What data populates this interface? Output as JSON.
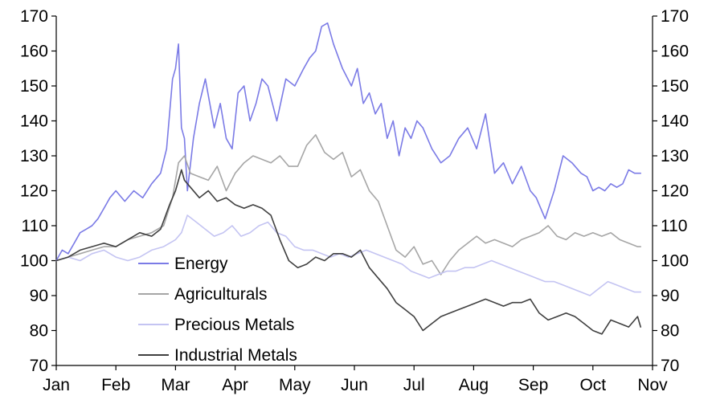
{
  "chart_data": {
    "type": "line",
    "title": "",
    "xlabel": "",
    "ylabel": "",
    "ylim": [
      70,
      170
    ],
    "y_ticks": [
      70,
      80,
      90,
      100,
      110,
      120,
      130,
      140,
      150,
      160,
      170
    ],
    "x_tick_labels": [
      "Jan",
      "Feb",
      "Mar",
      "Apr",
      "May",
      "Jun",
      "Jul",
      "Aug",
      "Sep",
      "Oct",
      "Nov"
    ],
    "x_unit": "month index (0 = start of Jan, 10 = start of Nov)",
    "xlim": [
      0,
      10
    ],
    "grid": false,
    "right_axis": true,
    "legend_position": "bottom-left",
    "series": [
      {
        "name": "Energy",
        "color": "#7b7be6",
        "x": [
          0,
          0.1,
          0.2,
          0.3,
          0.4,
          0.5,
          0.6,
          0.7,
          0.8,
          0.9,
          1.0,
          1.15,
          1.3,
          1.45,
          1.6,
          1.75,
          1.85,
          1.95,
          2.0,
          2.05,
          2.1,
          2.15,
          2.2,
          2.3,
          2.4,
          2.5,
          2.65,
          2.75,
          2.85,
          2.95,
          3.05,
          3.15,
          3.25,
          3.35,
          3.45,
          3.55,
          3.7,
          3.85,
          4.0,
          4.15,
          4.25,
          4.35,
          4.45,
          4.55,
          4.65,
          4.8,
          4.95,
          5.05,
          5.15,
          5.25,
          5.35,
          5.45,
          5.55,
          5.65,
          5.75,
          5.85,
          5.95,
          6.05,
          6.15,
          6.3,
          6.45,
          6.6,
          6.75,
          6.9,
          7.05,
          7.2,
          7.35,
          7.5,
          7.65,
          7.8,
          7.95,
          8.05,
          8.2,
          8.35,
          8.5,
          8.65,
          8.8,
          8.9,
          9.0,
          9.1,
          9.2,
          9.3,
          9.4,
          9.5,
          9.6,
          9.7,
          9.8
        ],
        "values": [
          100,
          103,
          102,
          105,
          108,
          109,
          110,
          112,
          115,
          118,
          120,
          117,
          120,
          118,
          122,
          125,
          132,
          152,
          155,
          162,
          138,
          135,
          120,
          135,
          145,
          152,
          138,
          145,
          135,
          132,
          148,
          150,
          140,
          145,
          152,
          150,
          140,
          152,
          150,
          155,
          158,
          160,
          167,
          168,
          162,
          155,
          150,
          155,
          145,
          148,
          142,
          145,
          135,
          140,
          130,
          138,
          135,
          140,
          138,
          132,
          128,
          130,
          135,
          138,
          132,
          142,
          125,
          128,
          122,
          127,
          120,
          118,
          112,
          120,
          130,
          128,
          125,
          124,
          120,
          121,
          120,
          122,
          121,
          122,
          126,
          125,
          125
        ]
      },
      {
        "name": "Agriculturals",
        "color": "#a6a6a6",
        "x": [
          0,
          0.2,
          0.4,
          0.6,
          0.8,
          1.0,
          1.2,
          1.4,
          1.6,
          1.8,
          1.95,
          2.05,
          2.15,
          2.25,
          2.4,
          2.55,
          2.7,
          2.85,
          3.0,
          3.15,
          3.3,
          3.45,
          3.6,
          3.75,
          3.9,
          4.05,
          4.2,
          4.35,
          4.5,
          4.65,
          4.8,
          4.95,
          5.1,
          5.25,
          5.4,
          5.55,
          5.7,
          5.85,
          6.0,
          6.15,
          6.3,
          6.45,
          6.6,
          6.75,
          6.9,
          7.05,
          7.2,
          7.35,
          7.5,
          7.65,
          7.8,
          7.95,
          8.1,
          8.25,
          8.4,
          8.55,
          8.7,
          8.85,
          9.0,
          9.15,
          9.3,
          9.45,
          9.6,
          9.75,
          9.8
        ],
        "values": [
          100,
          101,
          102,
          103,
          104,
          104,
          106,
          107,
          108,
          110,
          118,
          128,
          130,
          125,
          124,
          123,
          127,
          120,
          125,
          128,
          130,
          129,
          128,
          130,
          127,
          127,
          133,
          136,
          131,
          129,
          131,
          124,
          126,
          120,
          117,
          110,
          103,
          101,
          104,
          99,
          100,
          96,
          100,
          103,
          105,
          107,
          105,
          106,
          105,
          104,
          106,
          107,
          108,
          110,
          107,
          106,
          108,
          107,
          108,
          107,
          108,
          106,
          105,
          104,
          104
        ]
      },
      {
        "name": "Precious Metals",
        "color": "#c4c4f2",
        "x": [
          0,
          0.2,
          0.4,
          0.6,
          0.8,
          1.0,
          1.2,
          1.4,
          1.6,
          1.8,
          2.0,
          2.1,
          2.2,
          2.35,
          2.5,
          2.65,
          2.8,
          2.95,
          3.1,
          3.25,
          3.4,
          3.55,
          3.7,
          3.85,
          4.0,
          4.15,
          4.3,
          4.45,
          4.6,
          4.75,
          4.9,
          5.05,
          5.2,
          5.35,
          5.5,
          5.65,
          5.8,
          5.95,
          6.1,
          6.25,
          6.4,
          6.55,
          6.7,
          6.85,
          7.0,
          7.15,
          7.3,
          7.45,
          7.6,
          7.75,
          7.9,
          8.05,
          8.2,
          8.35,
          8.5,
          8.65,
          8.8,
          8.95,
          9.1,
          9.25,
          9.4,
          9.55,
          9.7,
          9.8
        ],
        "values": [
          100,
          101,
          100,
          102,
          103,
          101,
          100,
          101,
          103,
          104,
          106,
          108,
          113,
          111,
          109,
          107,
          108,
          110,
          107,
          108,
          110,
          111,
          108,
          107,
          104,
          103,
          103,
          102,
          101,
          102,
          101,
          102,
          103,
          102,
          101,
          100,
          99,
          97,
          96,
          95,
          96,
          97,
          97,
          98,
          98,
          99,
          100,
          99,
          98,
          97,
          96,
          95,
          94,
          94,
          93,
          92,
          91,
          90,
          92,
          94,
          93,
          92,
          91,
          91
        ]
      },
      {
        "name": "Industrial Metals",
        "color": "#404040",
        "x": [
          0,
          0.2,
          0.4,
          0.6,
          0.8,
          1.0,
          1.2,
          1.4,
          1.6,
          1.75,
          1.9,
          2.0,
          2.1,
          2.15,
          2.25,
          2.4,
          2.55,
          2.7,
          2.85,
          3.0,
          3.15,
          3.3,
          3.45,
          3.6,
          3.75,
          3.9,
          4.05,
          4.2,
          4.35,
          4.5,
          4.65,
          4.8,
          4.95,
          5.1,
          5.25,
          5.4,
          5.55,
          5.7,
          5.85,
          6.0,
          6.15,
          6.3,
          6.45,
          6.6,
          6.75,
          6.9,
          7.05,
          7.2,
          7.35,
          7.5,
          7.65,
          7.8,
          7.95,
          8.1,
          8.25,
          8.4,
          8.55,
          8.7,
          8.85,
          9.0,
          9.15,
          9.3,
          9.45,
          9.6,
          9.75,
          9.8
        ],
        "values": [
          100,
          101,
          103,
          104,
          105,
          104,
          106,
          108,
          107,
          109,
          116,
          120,
          126,
          123,
          121,
          118,
          120,
          117,
          118,
          116,
          115,
          116,
          115,
          113,
          106,
          100,
          98,
          99,
          101,
          100,
          102,
          102,
          101,
          103,
          98,
          95,
          92,
          88,
          86,
          84,
          80,
          82,
          84,
          85,
          86,
          87,
          88,
          89,
          88,
          87,
          88,
          88,
          89,
          85,
          83,
          84,
          85,
          84,
          82,
          80,
          79,
          83,
          82,
          81,
          84,
          81
        ]
      }
    ]
  }
}
